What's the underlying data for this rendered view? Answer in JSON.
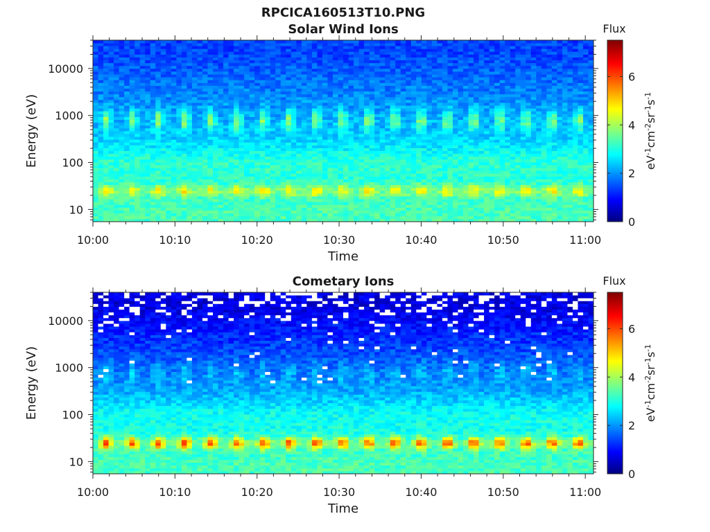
{
  "figure_title": "RPCICA160513T10.PNG",
  "colormap": [
    "#00007f",
    "#0000ff",
    "#00ffff",
    "#ffff00",
    "#ff0000",
    "#7f0000"
  ],
  "chart_data": [
    {
      "type": "heatmap",
      "title": "Solar Wind Ions",
      "xlabel": "Time",
      "ylabel": "Energy (eV)",
      "x_ticks": [
        "10:00",
        "10:10",
        "10:20",
        "10:30",
        "10:40",
        "10:50",
        "11:00"
      ],
      "xlim": [
        "10:00",
        "11:01"
      ],
      "y_scale": "log",
      "y_ticks": [
        "10",
        "100",
        "1000",
        "10000"
      ],
      "ylim": [
        5.5,
        40000
      ],
      "colorbar": {
        "title": "Flux",
        "label": "eV-1cm-2sr-1s-1",
        "ticks": [
          "0",
          "2",
          "4",
          "6"
        ],
        "range": [
          0,
          7.5
        ]
      },
      "features": [
        {
          "energy_eV": 25,
          "flux": 4.5,
          "pattern": "periodic bursts about every 3.2 min"
        },
        {
          "energy_eV": 800,
          "flux": 3.7,
          "pattern": "periodic bursts about every 3.2 min"
        },
        {
          "energy_eV": 10,
          "flux": 3.3,
          "pattern": "continuous"
        },
        {
          "energy_eV": 20000,
          "flux": 1.4,
          "pattern": "continuous background"
        }
      ]
    },
    {
      "type": "heatmap",
      "title": "Cometary Ions",
      "xlabel": "Time",
      "ylabel": "Energy (eV)",
      "x_ticks": [
        "10:00",
        "10:10",
        "10:20",
        "10:30",
        "10:40",
        "10:50",
        "11:00"
      ],
      "xlim": [
        "10:00",
        "11:01"
      ],
      "y_scale": "log",
      "y_ticks": [
        "10",
        "100",
        "1000",
        "10000"
      ],
      "ylim": [
        5.5,
        40000
      ],
      "colorbar": {
        "title": "Flux",
        "label": "eV-1cm-2sr-1s-1",
        "ticks": [
          "0",
          "2",
          "4",
          "6"
        ],
        "range": [
          0,
          7.5
        ]
      },
      "features": [
        {
          "energy_eV": 25,
          "flux": 5.8,
          "pattern": "periodic bursts about every 3.2 min"
        },
        {
          "energy_eV": 800,
          "flux": 2.6,
          "pattern": "periodic bursts about every 3.2 min"
        },
        {
          "energy_eV": 10,
          "flux": 3.3,
          "pattern": "continuous"
        },
        {
          "energy_eV": 20000,
          "flux": 0.7,
          "pattern": "sparse, frequent empty (white) bins"
        }
      ]
    }
  ]
}
